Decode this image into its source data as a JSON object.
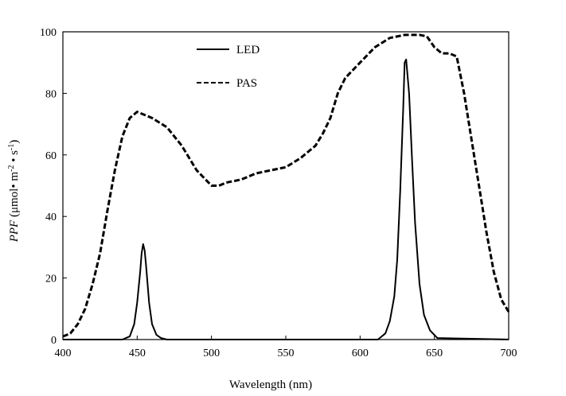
{
  "chart_data": {
    "type": "line",
    "title": "",
    "xlabel": "Wavelength (nm)",
    "ylabel": {
      "italic": "PPF",
      "rest": " (μmol• m",
      "exp1": "-2",
      "mid": " • s",
      "exp2": "-1",
      "end": ")"
    },
    "xlim": [
      400,
      700
    ],
    "ylim": [
      0,
      100
    ],
    "xticks": [
      "400",
      "450",
      "500",
      "550",
      "600",
      "650",
      "700"
    ],
    "yticks": [
      "0",
      "20",
      "40",
      "60",
      "80",
      "100"
    ],
    "grid": false,
    "legend_position": "top-center",
    "series": [
      {
        "name": "LED",
        "style": "solid",
        "color": "#000000",
        "x": [
          400,
          440,
          445,
          448,
          450,
          452,
          453,
          454,
          455,
          456,
          458,
          460,
          463,
          466,
          470,
          600,
          612,
          617,
          620,
          623,
          625,
          627,
          629,
          630,
          631,
          633,
          635,
          637,
          640,
          643,
          647,
          652,
          700
        ],
        "y": [
          0,
          0,
          1,
          5,
          12,
          22,
          28,
          31,
          29,
          24,
          12,
          5,
          1.5,
          0.5,
          0,
          0,
          0,
          2,
          6,
          14,
          26,
          48,
          75,
          90,
          91,
          80,
          58,
          38,
          18,
          8,
          3,
          0.5,
          0
        ]
      },
      {
        "name": "PAS",
        "style": "dashed",
        "color": "#000000",
        "x": [
          400,
          405,
          410,
          415,
          420,
          425,
          430,
          435,
          440,
          445,
          450,
          455,
          460,
          470,
          480,
          490,
          500,
          505,
          510,
          520,
          530,
          540,
          550,
          560,
          570,
          575,
          580,
          585,
          590,
          600,
          610,
          620,
          630,
          640,
          645,
          650,
          655,
          660,
          665,
          670,
          675,
          680,
          685,
          690,
          695,
          700
        ],
        "y": [
          1,
          2,
          5,
          10,
          18,
          28,
          42,
          55,
          66,
          72,
          74,
          73,
          72,
          69,
          63,
          55,
          50,
          50,
          51,
          52,
          54,
          55,
          56,
          59,
          63,
          67,
          72,
          80,
          85,
          90,
          95,
          98,
          99,
          99,
          98.5,
          95,
          93,
          93,
          92,
          80,
          65,
          50,
          35,
          22,
          13,
          9
        ]
      }
    ]
  }
}
